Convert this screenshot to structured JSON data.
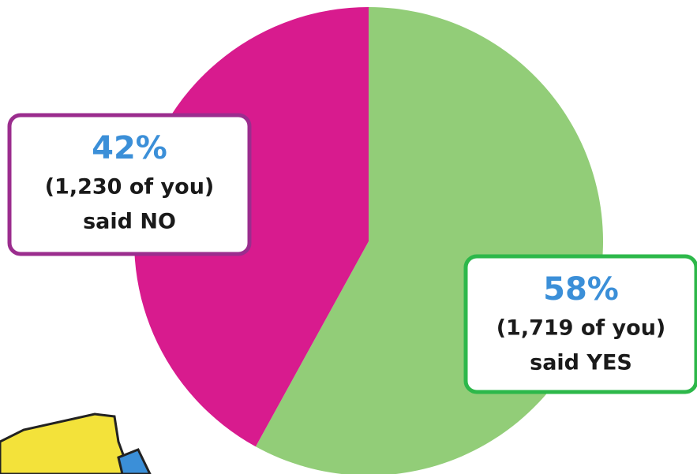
{
  "chart_data": {
    "type": "pie",
    "categories": [
      "said YES",
      "said NO"
    ],
    "values": [
      58,
      42
    ],
    "value_labels": [
      "58%",
      "42%"
    ],
    "count_labels": [
      "(1,719 of you)",
      "(1,230 of you)"
    ],
    "colors": [
      "#92cd78",
      "#d81b8e"
    ],
    "label_border_colors": [
      "#2db84a",
      "#9b2d8e"
    ]
  }
}
